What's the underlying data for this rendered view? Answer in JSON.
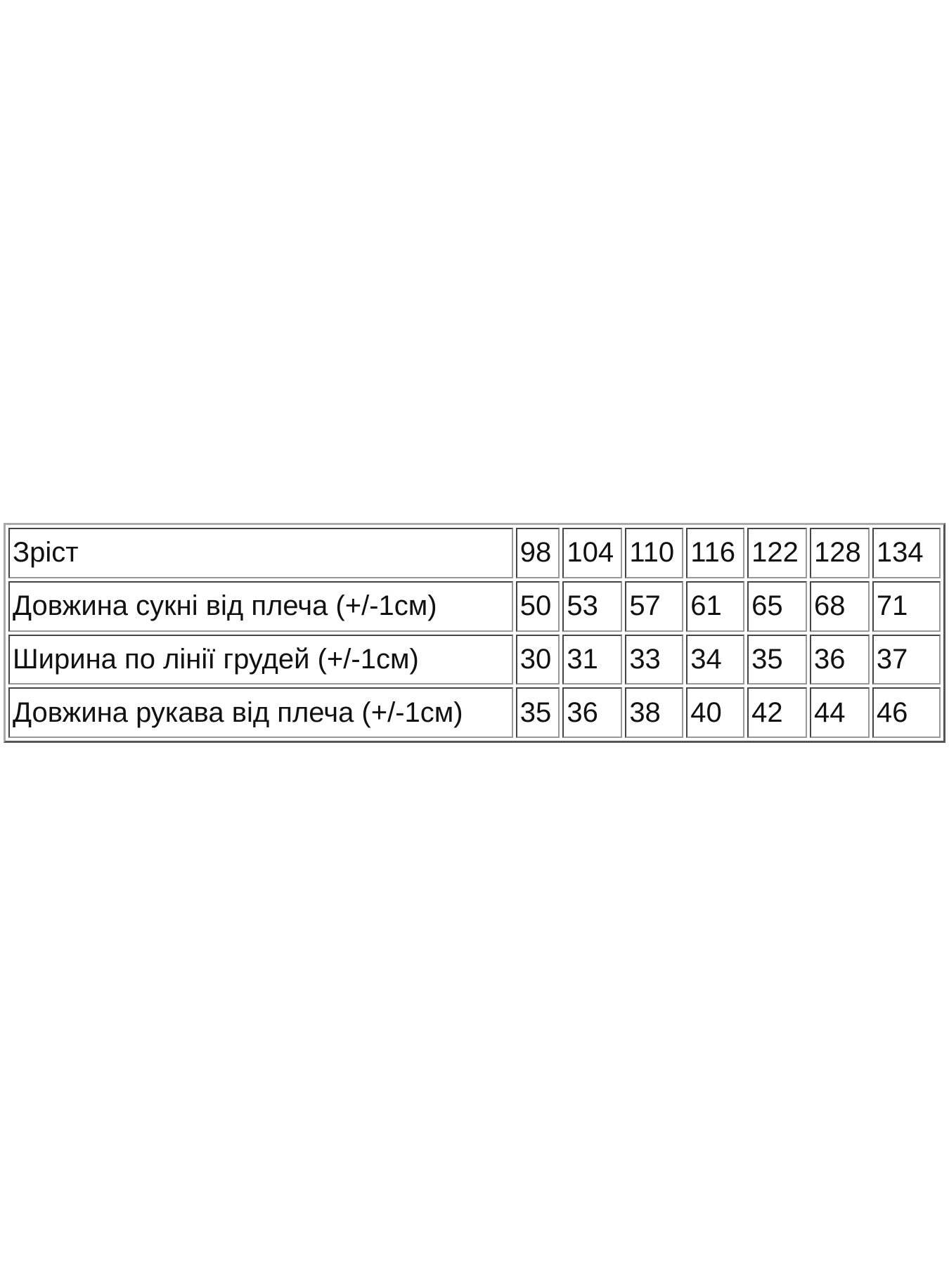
{
  "table": {
    "rows": [
      [
        "Зріст",
        98,
        104,
        110,
        116,
        122,
        128,
        134
      ],
      [
        "Довжина сукні від плеча (+/-1см)",
        50,
        53,
        57,
        61,
        65,
        68,
        71
      ],
      [
        "Ширина по лінії грудей (+/-1см)",
        30,
        31,
        33,
        34,
        35,
        36,
        37
      ],
      [
        "Довжина рукава від плеча (+/-1см)",
        35,
        36,
        38,
        40,
        42,
        44,
        46
      ]
    ]
  }
}
